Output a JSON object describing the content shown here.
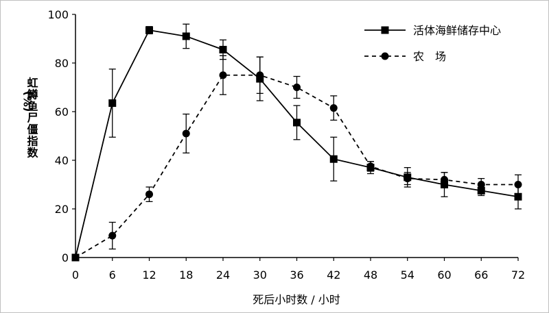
{
  "chart_data": {
    "type": "line",
    "title": "",
    "xlabel": "死后小时数 / 小时",
    "ylabel_unit": "(%)",
    "ylabel": "虹鳟鱼尸僵指数",
    "x": [
      0,
      6,
      12,
      18,
      24,
      30,
      36,
      42,
      48,
      54,
      60,
      66,
      72
    ],
    "xticks": [
      "0",
      "6",
      "12",
      "18",
      "24",
      "30",
      "36",
      "42",
      "48",
      "54",
      "60",
      "66",
      "72"
    ],
    "yticks": [
      "0",
      "20",
      "40",
      "60",
      "80",
      "100"
    ],
    "xlim": [
      0,
      72
    ],
    "ylim": [
      0,
      100
    ],
    "grid": false,
    "legend_position": "top-right",
    "series": [
      {
        "name": "活体海鲜储存中心",
        "line_style": "solid",
        "marker": "square",
        "color": "#000000",
        "values": [
          0,
          63.5,
          93.5,
          91,
          85.5,
          73.5,
          55.5,
          40.5,
          37,
          33,
          30,
          27.5,
          25
        ],
        "errors": [
          0,
          14,
          1.5,
          5,
          4,
          9,
          7,
          9,
          2.5,
          4,
          5,
          2,
          5
        ]
      },
      {
        "name": "农　场",
        "line_style": "dashed",
        "marker": "circle",
        "color": "#000000",
        "values": [
          0,
          9,
          26,
          51,
          75,
          75,
          70,
          61.5,
          37.5,
          32.5,
          32,
          30,
          30
        ],
        "errors": [
          0,
          5.5,
          3,
          8,
          8,
          7.5,
          4.5,
          5,
          2,
          2.5,
          3,
          2.5,
          4
        ]
      }
    ]
  }
}
